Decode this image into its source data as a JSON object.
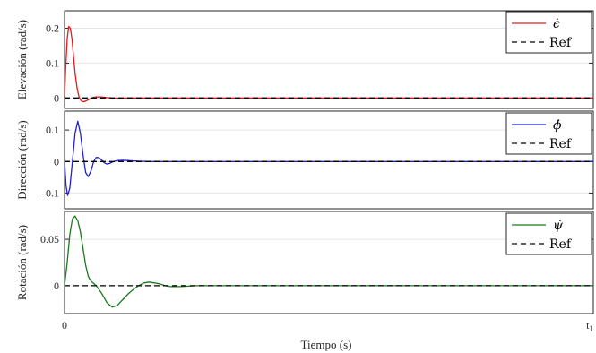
{
  "chart_data": [
    {
      "type": "line",
      "ylabel": "Elevación (rad/s)",
      "xlim": [
        0,
        1
      ],
      "ylim": [
        -0.03,
        0.25
      ],
      "yticks": [
        0,
        0.1,
        0.2
      ],
      "ytick_labels": [
        "0",
        "0.1",
        "0.2"
      ],
      "grid": true,
      "legend": "top-right",
      "colors": {
        "signal": "#e41a1c",
        "ref": "#000000"
      },
      "series": [
        {
          "name": "ϵ̇",
          "style": "solid",
          "x": [
            0,
            0.002,
            0.005,
            0.008,
            0.011,
            0.014,
            0.017,
            0.02,
            0.024,
            0.028,
            0.032,
            0.036,
            0.04,
            0.045,
            0.05,
            0.055,
            0.06,
            0.07,
            0.08,
            0.09,
            0.1,
            0.12,
            0.15,
            0.2,
            0.3,
            0.5,
            1.0
          ],
          "values": [
            0,
            0.08,
            0.17,
            0.205,
            0.2,
            0.17,
            0.12,
            0.07,
            0.025,
            0.0,
            -0.009,
            -0.011,
            -0.009,
            -0.005,
            -0.001,
            0.002,
            0.003,
            0.003,
            0.001,
            0.0,
            -0.0005,
            0.0,
            0.0,
            0.0,
            0.0,
            0.0,
            0.0
          ]
        },
        {
          "name": "Ref",
          "style": "dashed",
          "x": [
            0,
            1.0
          ],
          "values": [
            0,
            0
          ]
        }
      ]
    },
    {
      "type": "line",
      "ylabel": "Dirección (rad/s)",
      "xlim": [
        0,
        1
      ],
      "ylim": [
        -0.15,
        0.16
      ],
      "yticks": [
        -0.1,
        0,
        0.1
      ],
      "ytick_labels": [
        "-0.1",
        "0",
        "0.1"
      ],
      "grid": true,
      "legend": "top-right",
      "colors": {
        "signal": "#1f1fd6",
        "ref": "#000000"
      },
      "series": [
        {
          "name": "ϕ̇",
          "style": "solid",
          "x": [
            0,
            0.003,
            0.006,
            0.01,
            0.015,
            0.02,
            0.025,
            0.03,
            0.035,
            0.04,
            0.045,
            0.05,
            0.055,
            0.06,
            0.065,
            0.07,
            0.075,
            0.08,
            0.085,
            0.09,
            0.095,
            0.1,
            0.11,
            0.12,
            0.13,
            0.14,
            0.16,
            0.2,
            0.3,
            1.0
          ],
          "values": [
            0,
            -0.08,
            -0.108,
            -0.085,
            0.0,
            0.09,
            0.128,
            0.09,
            0.02,
            -0.035,
            -0.048,
            -0.03,
            0.0,
            0.013,
            0.012,
            0.005,
            -0.004,
            -0.008,
            -0.006,
            -0.002,
            0.001,
            0.003,
            0.004,
            0.003,
            0.002,
            0.001,
            0.0,
            0.0,
            0.0,
            0.0
          ]
        },
        {
          "name": "Ref",
          "style": "dashed",
          "x": [
            0,
            1.0
          ],
          "values": [
            0,
            0
          ]
        }
      ]
    },
    {
      "type": "line",
      "ylabel": "Rotación (rad/s)",
      "xlabel": "Tiempo (s)",
      "xlim": [
        0,
        1
      ],
      "ylim": [
        -0.03,
        0.08
      ],
      "yticks": [
        0,
        0.05
      ],
      "ytick_labels": [
        "0",
        "0.05"
      ],
      "xticks": [
        0,
        1
      ],
      "xtick_labels": [
        "0",
        "t1"
      ],
      "grid": true,
      "legend": "top-right",
      "colors": {
        "signal": "#1a7a1a",
        "ref": "#000000"
      },
      "series": [
        {
          "name": "ψ̇",
          "style": "solid",
          "x": [
            0,
            0.005,
            0.01,
            0.015,
            0.02,
            0.025,
            0.03,
            0.035,
            0.04,
            0.045,
            0.05,
            0.06,
            0.07,
            0.08,
            0.09,
            0.1,
            0.11,
            0.12,
            0.13,
            0.14,
            0.15,
            0.16,
            0.17,
            0.18,
            0.19,
            0.2,
            0.22,
            0.25,
            0.3,
            0.4,
            1.0
          ],
          "values": [
            0,
            0.025,
            0.055,
            0.072,
            0.075,
            0.07,
            0.058,
            0.04,
            0.022,
            0.01,
            0.005,
            0.0,
            -0.008,
            -0.018,
            -0.023,
            -0.021,
            -0.015,
            -0.009,
            -0.004,
            0.0,
            0.003,
            0.004,
            0.003,
            0.002,
            0.0,
            -0.001,
            -0.001,
            0.0,
            0.0,
            0.0,
            0.0
          ]
        },
        {
          "name": "Ref",
          "style": "dashed",
          "x": [
            0,
            1.0
          ],
          "values": [
            0,
            0
          ]
        }
      ]
    }
  ]
}
